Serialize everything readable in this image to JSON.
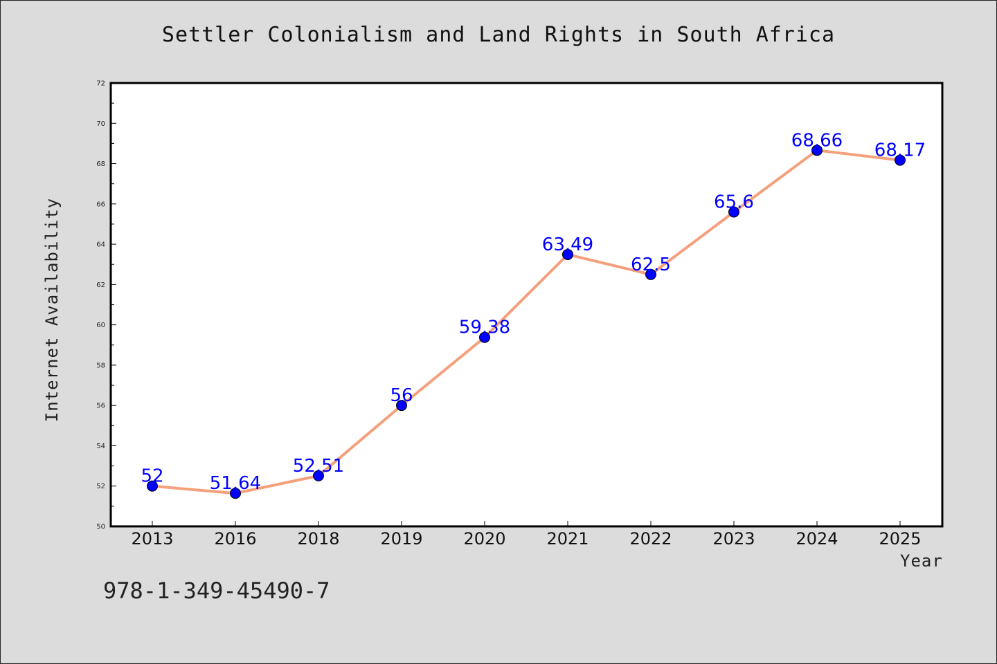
{
  "title": "Settler Colonialism and Land Rights in South Africa",
  "isbn": "978-1-349-45490-7",
  "colors": {
    "background": "#dcdcdc",
    "plot_background": "#ffffff",
    "line": "#f4a07c",
    "marker": "#0000ff",
    "data_label": "#0000ff"
  },
  "chart_data": {
    "type": "line",
    "title": "Settler Colonialism and Land Rights in South Africa",
    "xlabel": "Year",
    "ylabel": "Internet Availability",
    "categories": [
      "2013",
      "2016",
      "2018",
      "2019",
      "2020",
      "2021",
      "2022",
      "2023",
      "2024",
      "2025"
    ],
    "series": [
      {
        "values": [
          52,
          51.64,
          52.51,
          56,
          59.38,
          63.49,
          62.5,
          65.6,
          68.66,
          68.17
        ]
      }
    ],
    "data_labels": [
      "52",
      "51.64",
      "52.51",
      "56",
      "59.38",
      "63.49",
      "62.5",
      "65.6",
      "68.66",
      "68.17"
    ],
    "ylim": [
      50,
      72
    ],
    "yticks": [
      50,
      52,
      54,
      56,
      58,
      60,
      62,
      64,
      66,
      68,
      70,
      72
    ],
    "grid": false,
    "legend": "none"
  }
}
